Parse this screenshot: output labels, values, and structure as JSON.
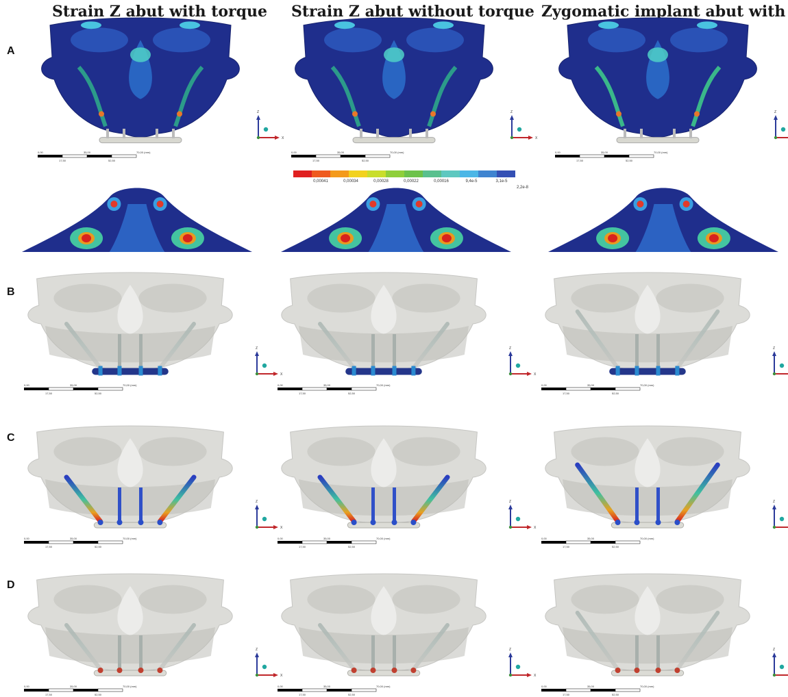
{
  "titles": {
    "col1": "Strain Z abut with torque",
    "col2": "Strain Z abut without torque",
    "col3": "Zygomatic implant abut with torq"
  },
  "rows": {
    "a": "A",
    "b": "B",
    "c": "C",
    "d": "D"
  },
  "scale_bar": {
    "t0": "0,00",
    "t1": "35,00",
    "t2": "70,00 (mm)",
    "b1": "17,50",
    "b2": "52,50"
  },
  "axes": {
    "z": "Z",
    "x": "X"
  },
  "legend": {
    "colors": [
      "#e02020",
      "#ef5a1e",
      "#f49a1c",
      "#f2d21e",
      "#c9de2c",
      "#8fcf3a",
      "#6cc24a",
      "#59c08e",
      "#5ec8c0",
      "#4bb6e6",
      "#3f84d0",
      "#3450b4"
    ],
    "labels": [
      "0,00041",
      "0,00034",
      "0,00028",
      "0,00022",
      "0,00016",
      "9,4e-5",
      "3,1e-5"
    ],
    "min_label": "2,2e-8"
  }
}
